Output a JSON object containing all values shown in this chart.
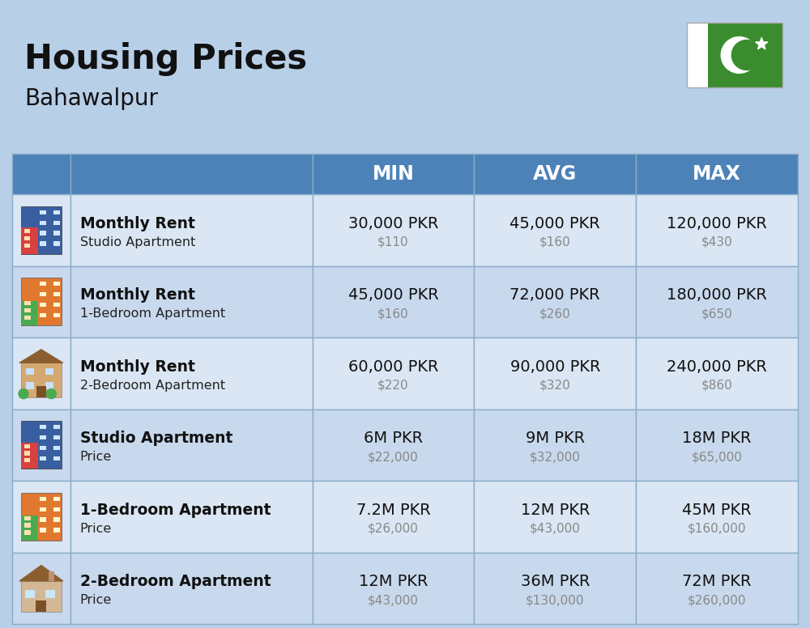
{
  "title": "Housing Prices",
  "subtitle": "Bahawalpur",
  "background_color": "#b8cfe8",
  "header_bg_color": "#4d82b8",
  "header_text_color": "#ffffff",
  "row_bg_even": "#dae6f3",
  "row_bg_odd": "#c8d9ed",
  "col_headers": [
    "MIN",
    "AVG",
    "MAX"
  ],
  "rows": [
    {
      "icon_type": "studio_blue",
      "label_bold": "Monthly Rent",
      "label_sub": "Studio Apartment",
      "min_pkr": "30,000 PKR",
      "min_usd": "$110",
      "avg_pkr": "45,000 PKR",
      "avg_usd": "$160",
      "max_pkr": "120,000 PKR",
      "max_usd": "$430"
    },
    {
      "icon_type": "apt_orange",
      "label_bold": "Monthly Rent",
      "label_sub": "1-Bedroom Apartment",
      "min_pkr": "45,000 PKR",
      "min_usd": "$160",
      "avg_pkr": "72,000 PKR",
      "avg_usd": "$260",
      "max_pkr": "180,000 PKR",
      "max_usd": "$650"
    },
    {
      "icon_type": "apt_beige",
      "label_bold": "Monthly Rent",
      "label_sub": "2-Bedroom Apartment",
      "min_pkr": "60,000 PKR",
      "min_usd": "$220",
      "avg_pkr": "90,000 PKR",
      "avg_usd": "$320",
      "max_pkr": "240,000 PKR",
      "max_usd": "$860"
    },
    {
      "icon_type": "studio_blue",
      "label_bold": "Studio Apartment",
      "label_sub": "Price",
      "min_pkr": "6M PKR",
      "min_usd": "$22,000",
      "avg_pkr": "9M PKR",
      "avg_usd": "$32,000",
      "max_pkr": "18M PKR",
      "max_usd": "$65,000"
    },
    {
      "icon_type": "apt_orange",
      "label_bold": "1-Bedroom Apartment",
      "label_sub": "Price",
      "min_pkr": "7.2M PKR",
      "min_usd": "$26,000",
      "avg_pkr": "12M PKR",
      "avg_usd": "$43,000",
      "max_pkr": "45M PKR",
      "max_usd": "$160,000"
    },
    {
      "icon_type": "apt_brown",
      "label_bold": "2-Bedroom Apartment",
      "label_sub": "Price",
      "min_pkr": "12M PKR",
      "min_usd": "$43,000",
      "avg_pkr": "36M PKR",
      "avg_usd": "$130,000",
      "max_pkr": "72M PKR",
      "max_usd": "$260,000"
    }
  ],
  "flag_green": "#3a8c2f",
  "cell_border_color": "#8aacc8"
}
